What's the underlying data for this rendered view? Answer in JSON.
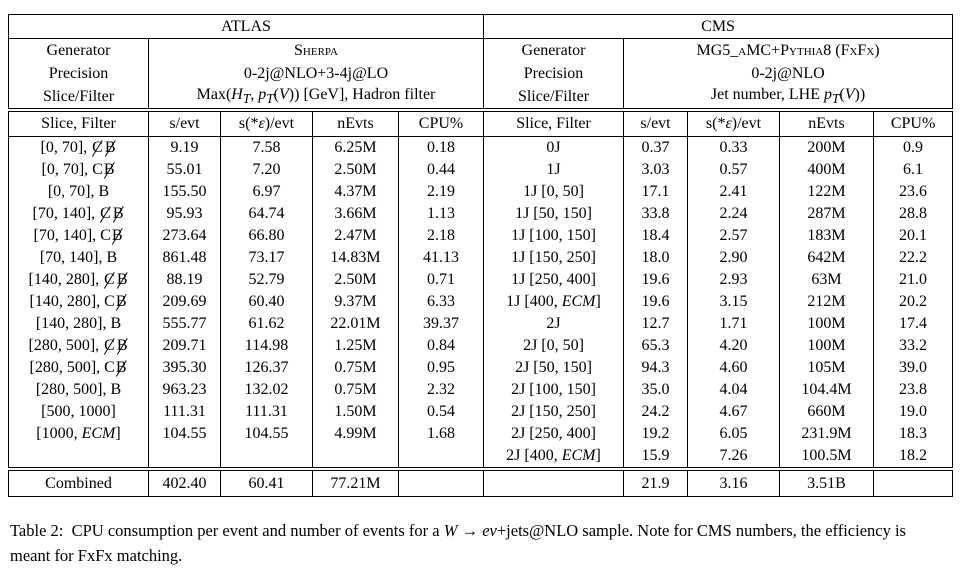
{
  "colors": {
    "text": "#000000",
    "background": "#ffffff",
    "border": "#000000"
  },
  "table": {
    "atlas": {
      "title": "ATLAS",
      "generator_label": "Generator",
      "generator": "Sherpa",
      "precision_label": "Precision",
      "precision": "0-2j@NLO+3-4j@LO",
      "slice_filter_label": "Slice/Filter",
      "slice_filter_html": "Max(<i>H<sub>T</sub></i>, <i>p<sub>T</sub></i>(<i>V</i>)) [GeV], Hadron filter",
      "columns": [
        "Slice, Filter",
        "s/evt",
        "s(*<i>ε</i>)/evt",
        "nEvts",
        "CPU%"
      ],
      "rows": [
        [
          "[0, 70], <s>C</s><s>B</s>",
          "9.19",
          "7.58",
          "6.25M",
          "0.18"
        ],
        [
          "[0, 70], C<s>B</s>",
          "55.01",
          "7.20",
          "2.50M",
          "0.44"
        ],
        [
          "[0, 70], B",
          "155.50",
          "6.97",
          "4.37M",
          "2.19"
        ],
        [
          "[70, 140], <s>C</s><s>B</s>",
          "95.93",
          "64.74",
          "3.66M",
          "1.13"
        ],
        [
          "[70, 140], C<s>B</s>",
          "273.64",
          "66.80",
          "2.47M",
          "2.18"
        ],
        [
          "[70, 140], B",
          "861.48",
          "73.17",
          "14.83M",
          "41.13"
        ],
        [
          "[140, 280], <s>C</s><s>B</s>",
          "88.19",
          "52.79",
          "2.50M",
          "0.71"
        ],
        [
          "[140, 280], C<s>B</s>",
          "209.69",
          "60.40",
          "9.37M",
          "6.33"
        ],
        [
          "[140, 280], B",
          "555.77",
          "61.62",
          "22.01M",
          "39.37"
        ],
        [
          "[280, 500], <s>C</s><s>B</s>",
          "209.71",
          "114.98",
          "1.25M",
          "0.84"
        ],
        [
          "[280, 500], C<s>B</s>",
          "395.30",
          "126.37",
          "0.75M",
          "0.95"
        ],
        [
          "[280, 500], B",
          "963.23",
          "132.02",
          "0.75M",
          "2.32"
        ],
        [
          "[500, 1000]",
          "111.31",
          "111.31",
          "1.50M",
          "0.54"
        ],
        [
          "[1000, <i>ECM</i>]",
          "104.55",
          "104.55",
          "4.99M",
          "1.68"
        ]
      ],
      "combined": [
        "Combined",
        "402.40",
        "60.41",
        "77.21M",
        ""
      ]
    },
    "cms": {
      "title": "CMS",
      "generator_label": "Generator",
      "generator": "MG5_aMC+Pythia8 (FxFx)",
      "precision_label": "Precision",
      "precision": "0-2j@NLO",
      "slice_filter_label": "Slice/Filter",
      "slice_filter_html": "Jet number, LHE <i>p<sub>T</sub></i>(<i>V</i>))",
      "columns": [
        "Slice, Filter",
        "s/evt",
        "s(*<i>ε</i>)/evt",
        "nEvts",
        "CPU%"
      ],
      "rows": [
        [
          "0J",
          "0.37",
          "0.33",
          "200M",
          "0.9"
        ],
        [
          "1J",
          "3.03",
          "0.57",
          "400M",
          "6.1"
        ],
        [
          "1J [0, 50]",
          "17.1",
          "2.41",
          "122M",
          "23.6"
        ],
        [
          "1J [50, 150]",
          "33.8",
          "2.24",
          "287M",
          "28.8"
        ],
        [
          "1J [100, 150]",
          "18.4",
          "2.57",
          "183M",
          "20.1"
        ],
        [
          "1J [150, 250]",
          "18.0",
          "2.90",
          "642M",
          "22.2"
        ],
        [
          "1J [250, 400]",
          "19.6",
          "2.93",
          "63M",
          "21.0"
        ],
        [
          "1J [400, <i>ECM</i>]",
          "19.6",
          "3.15",
          "212M",
          "20.2"
        ],
        [
          "2J",
          "12.7",
          "1.71",
          "100M",
          "17.4"
        ],
        [
          "2J [0, 50]",
          "65.3",
          "4.20",
          "100M",
          "33.2"
        ],
        [
          "2J [50, 150]",
          "94.3",
          "4.60",
          "105M",
          "39.0"
        ],
        [
          "2J [100, 150]",
          "35.0",
          "4.04",
          "104.4M",
          "23.8"
        ],
        [
          "2J [150, 250]",
          "24.2",
          "4.67",
          "660M",
          "19.0"
        ],
        [
          "2J [250, 400]",
          "19.2",
          "6.05",
          "231.9M",
          "18.3"
        ],
        [
          "2J [400, <i>ECM</i>]",
          "15.9",
          "7.26",
          "100.5M",
          "18.2"
        ]
      ],
      "combined": [
        "",
        "21.9",
        "3.16",
        "3.51B",
        ""
      ]
    }
  },
  "caption_html": "Table 2: &nbsp;CPU consumption per event and number of events for a <i>W</i> → <i>eν</i>+jets@NLO sample. Note for CMS numbers, the efficiency is meant for FxFx matching."
}
